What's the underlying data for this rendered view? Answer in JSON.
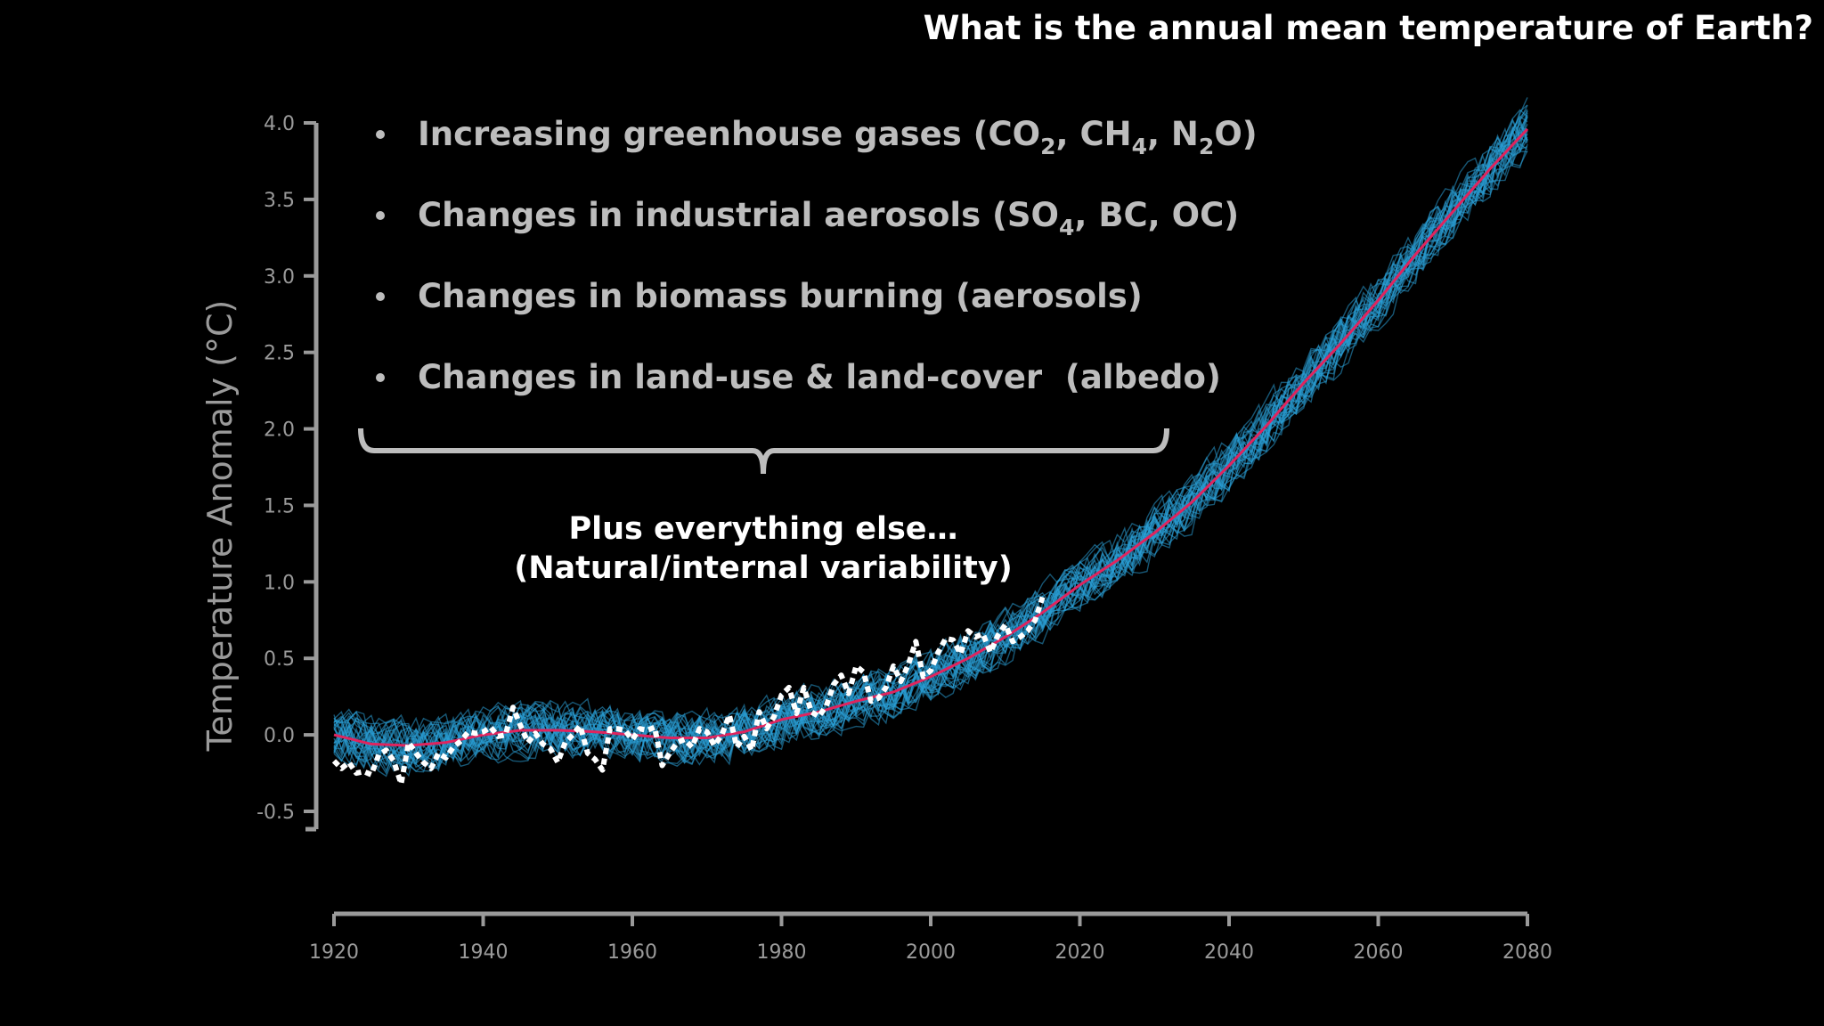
{
  "question": "What is the annual mean temperature of Earth?",
  "bullets": [
    {
      "text": "Increasing greenhouse gases (CO",
      "parts": [
        "Increasing greenhouse gases (CO",
        "2",
        ", CH",
        "4",
        ", N",
        "2",
        "O)"
      ]
    },
    {
      "parts": [
        "Changes in industrial aerosols (SO",
        "4",
        ", BC, OC)"
      ]
    },
    {
      "parts": [
        "Changes in biomass burning (aerosols)"
      ]
    },
    {
      "parts": [
        "Changes in land-use & land-cover  (albedo)"
      ]
    }
  ],
  "annotation": {
    "line1": "Plus everything else…",
    "line2": "(Natural/internal variability)"
  },
  "colors": {
    "background": "#000000",
    "ensemble": "#2a9fd6",
    "ensemble_mean": "#e0245e",
    "observed": "#ffffff",
    "axis": "#9a9a9a",
    "bullet_text": "#bdbdbd"
  },
  "chart_data": {
    "type": "line",
    "ylabel": "Temperature Anomaly (°C)",
    "xlabel": "",
    "xlim": [
      1920,
      2080
    ],
    "ylim": [
      -0.5,
      4.0
    ],
    "xticks": [
      "1920",
      "1940",
      "1960",
      "1980",
      "2000",
      "2020",
      "2040",
      "2060",
      "2080"
    ],
    "yticks": [
      "4.0",
      "3.5",
      "3.0",
      "2.5",
      "2.0",
      "1.5",
      "1.0",
      "0.5",
      "0.0",
      "-0.5"
    ],
    "grid": false,
    "ensemble_members": 30,
    "ensemble_mean": {
      "x": [
        1920,
        1925,
        1930,
        1935,
        1940,
        1945,
        1950,
        1955,
        1960,
        1965,
        1970,
        1975,
        1980,
        1985,
        1990,
        1995,
        2000,
        2005,
        2010,
        2015,
        2020,
        2025,
        2030,
        2035,
        2040,
        2045,
        2050,
        2055,
        2060,
        2065,
        2070,
        2075,
        2080
      ],
      "y": [
        0.0,
        -0.06,
        -0.07,
        -0.05,
        0.0,
        0.03,
        0.03,
        0.02,
        0.0,
        -0.02,
        -0.02,
        0.02,
        0.1,
        0.15,
        0.22,
        0.28,
        0.38,
        0.5,
        0.64,
        0.8,
        0.98,
        1.14,
        1.32,
        1.52,
        1.76,
        2.02,
        2.3,
        2.56,
        2.84,
        3.14,
        3.42,
        3.7,
        3.96
      ]
    },
    "observed": {
      "x": [
        1920,
        1921,
        1922,
        1923,
        1924,
        1925,
        1926,
        1927,
        1928,
        1929,
        1930,
        1931,
        1932,
        1933,
        1934,
        1935,
        1936,
        1937,
        1938,
        1939,
        1940,
        1941,
        1942,
        1943,
        1944,
        1945,
        1946,
        1947,
        1948,
        1949,
        1950,
        1951,
        1952,
        1953,
        1954,
        1955,
        1956,
        1957,
        1958,
        1959,
        1960,
        1961,
        1962,
        1963,
        1964,
        1965,
        1966,
        1967,
        1968,
        1969,
        1970,
        1971,
        1972,
        1973,
        1974,
        1975,
        1976,
        1977,
        1978,
        1979,
        1980,
        1981,
        1982,
        1983,
        1984,
        1985,
        1986,
        1987,
        1988,
        1989,
        1990,
        1991,
        1992,
        1993,
        1994,
        1995,
        1996,
        1997,
        1998,
        1999,
        2000,
        2001,
        2002,
        2003,
        2004,
        2005,
        2006,
        2007,
        2008,
        2009,
        2010,
        2011,
        2012,
        2013,
        2014,
        2015
      ],
      "y": [
        -0.17,
        -0.22,
        -0.18,
        -0.25,
        -0.24,
        -0.26,
        -0.13,
        -0.1,
        -0.17,
        -0.32,
        -0.05,
        -0.12,
        -0.18,
        -0.22,
        -0.12,
        -0.15,
        -0.08,
        -0.04,
        0.02,
        0.01,
        0.02,
        0.05,
        -0.01,
        0.0,
        0.18,
        0.06,
        -0.05,
        0.01,
        -0.06,
        -0.09,
        -0.18,
        -0.05,
        0.0,
        0.06,
        -0.12,
        -0.16,
        -0.23,
        0.04,
        0.04,
        0.03,
        -0.03,
        0.04,
        0.03,
        0.05,
        -0.2,
        -0.12,
        -0.05,
        -0.03,
        -0.08,
        0.04,
        0.02,
        -0.07,
        0.0,
        0.13,
        -0.08,
        -0.01,
        -0.1,
        0.15,
        0.04,
        0.12,
        0.26,
        0.31,
        0.14,
        0.31,
        0.15,
        0.12,
        0.19,
        0.33,
        0.39,
        0.27,
        0.45,
        0.41,
        0.22,
        0.24,
        0.31,
        0.45,
        0.35,
        0.46,
        0.61,
        0.38,
        0.42,
        0.54,
        0.63,
        0.62,
        0.53,
        0.68,
        0.64,
        0.66,
        0.54,
        0.65,
        0.72,
        0.61,
        0.64,
        0.68,
        0.75,
        0.9
      ]
    }
  }
}
